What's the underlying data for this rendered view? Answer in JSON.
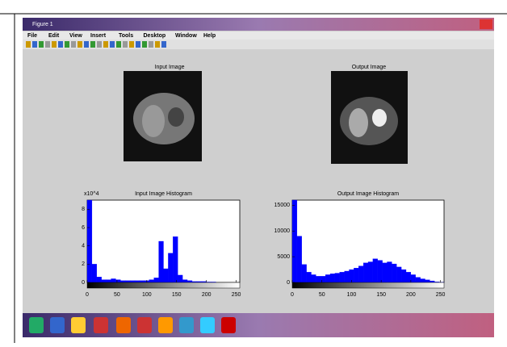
{
  "window": {
    "title": "Figure 1",
    "menu": [
      "File",
      "Edit",
      "View",
      "Insert",
      "Tools",
      "Desktop",
      "Window",
      "Help"
    ]
  },
  "figure": {
    "panels": [
      {
        "title": "Input Image"
      },
      {
        "title": "Output Image"
      }
    ]
  },
  "chart_data": [
    {
      "type": "histogram",
      "title": "Input Image Histogram",
      "y_exponent_label": "x10^4",
      "color": "#0000ff",
      "bins": [
        0,
        8,
        16,
        24,
        32,
        40,
        48,
        56,
        64,
        72,
        80,
        88,
        96,
        104,
        112,
        120,
        128,
        136,
        144,
        152,
        160,
        168,
        176,
        184,
        192,
        200,
        208,
        216,
        224,
        232,
        240,
        248,
        256
      ],
      "values": [
        9,
        2,
        0.6,
        0.3,
        0.3,
        0.4,
        0.3,
        0.2,
        0.2,
        0.2,
        0.2,
        0.2,
        0.2,
        0.3,
        0.5,
        4.5,
        1.5,
        3.2,
        5,
        0.8,
        0.3,
        0.2,
        0.1,
        0.1,
        0.1,
        0.05,
        0.05,
        0,
        0,
        0,
        0,
        0
      ],
      "xlim": [
        0,
        256
      ],
      "ylim": [
        0,
        9
      ],
      "xticks": [
        0,
        50,
        100,
        150,
        200,
        250
      ],
      "yticks": [
        0,
        2,
        4,
        6,
        8
      ]
    },
    {
      "type": "histogram",
      "title": "Output Image Histogram",
      "color": "#0000ff",
      "bins": [
        0,
        8,
        16,
        24,
        32,
        40,
        48,
        56,
        64,
        72,
        80,
        88,
        96,
        104,
        112,
        120,
        128,
        136,
        144,
        152,
        160,
        168,
        176,
        184,
        192,
        200,
        208,
        216,
        224,
        232,
        240,
        248,
        256
      ],
      "values": [
        16000,
        9000,
        3500,
        2000,
        1500,
        1200,
        1200,
        1500,
        1700,
        1800,
        2000,
        2200,
        2500,
        2800,
        3200,
        3800,
        4000,
        4600,
        4300,
        3800,
        4000,
        3600,
        3000,
        2500,
        2000,
        1500,
        1000,
        700,
        500,
        300,
        100,
        50
      ],
      "xlim": [
        0,
        256
      ],
      "ylim": [
        0,
        16000
      ],
      "xticks": [
        0,
        50,
        100,
        150,
        200,
        250
      ],
      "yticks": [
        0,
        5000,
        10000,
        15000
      ]
    }
  ]
}
